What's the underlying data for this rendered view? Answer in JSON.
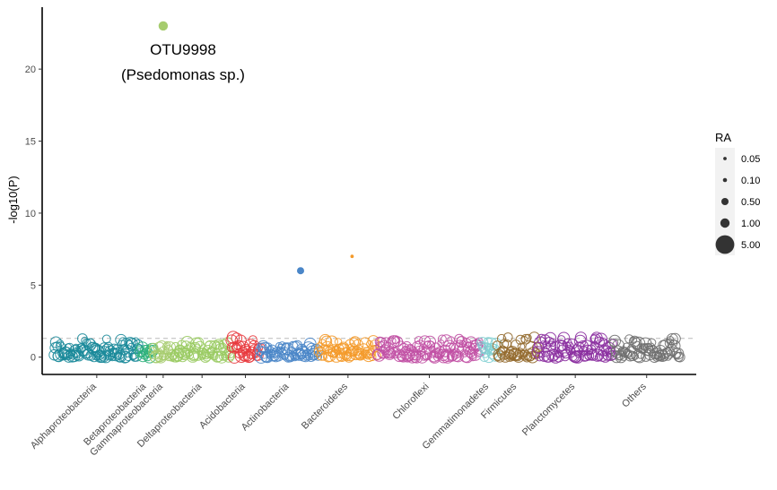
{
  "chart_data": {
    "type": "scatter",
    "ylabel": "-log10(P)",
    "xlabel": "",
    "ylim": [
      -1.2,
      24.3
    ],
    "y_ticks": [
      0,
      5,
      10,
      15,
      20
    ],
    "threshold": 1.3,
    "categories": [
      {
        "name": "Alphaproteobacteria",
        "color": "#1B8A9A",
        "range": [
          0,
          95
        ],
        "count": 95,
        "ymax": 1.3
      },
      {
        "name": "Betaproteobacteria",
        "color": "#2BB07A",
        "range": [
          95,
          110
        ],
        "count": 14,
        "ymax": 1.0
      },
      {
        "name": "Gammaproteobacteria",
        "color": "#A6CC6E",
        "range": [
          110,
          132
        ],
        "count": 22,
        "ymax": 1.0
      },
      {
        "name": "Deltaproteobacteria",
        "color": "#9ACB63",
        "range": [
          132,
          196
        ],
        "count": 64,
        "ymax": 1.1
      },
      {
        "name": "Acidobacteria",
        "color": "#E8383D",
        "range": [
          196,
          228
        ],
        "count": 32,
        "ymax": 1.4
      },
      {
        "name": "Actinobacteria",
        "color": "#4A86C8",
        "range": [
          228,
          293
        ],
        "count": 65,
        "ymax": 1.0
      },
      {
        "name": "Bacteroidetes",
        "color": "#F49A2A",
        "range": [
          293,
          358
        ],
        "count": 65,
        "ymax": 1.2
      },
      {
        "name": "Chloroflexi",
        "color": "#C150A4",
        "range": [
          358,
          473
        ],
        "count": 115,
        "ymax": 1.3
      },
      {
        "name": "Gemmatimonadetes",
        "color": "#7FCFD2",
        "range": [
          473,
          490
        ],
        "count": 17,
        "ymax": 1.1
      },
      {
        "name": "Firmicutes",
        "color": "#946A2E",
        "range": [
          490,
          535
        ],
        "count": 45,
        "ymax": 1.5
      },
      {
        "name": "Planctomycetes",
        "color": "#8B2FA0",
        "range": [
          535,
          619
        ],
        "count": 84,
        "ymax": 1.4
      },
      {
        "name": "Others",
        "color": "#707070",
        "range": [
          619,
          693
        ],
        "count": 74,
        "ymax": 1.3
      }
    ],
    "highlighted_points": [
      {
        "category": "Gammaproteobacteria",
        "x_index": 121,
        "y": 23.0,
        "ra": 1.0,
        "color": "#A6CC6E"
      },
      {
        "category": "Actinobacteria",
        "x_index": 273,
        "y": 6.0,
        "ra": 0.5,
        "color": "#4A86C8"
      },
      {
        "category": "Bacteroidetes",
        "x_index": 330,
        "y": 7.0,
        "ra": 0.05,
        "color": "#F49A2A"
      }
    ],
    "annotation": {
      "line1": "OTU9998",
      "line2": "(Psedomonas sp.)"
    },
    "legend": {
      "title": "RA",
      "position": "right",
      "entries": [
        {
          "label": "0.05",
          "value": 0.05
        },
        {
          "label": "0.10",
          "value": 0.1
        },
        {
          "label": "0.50",
          "value": 0.5
        },
        {
          "label": "1.00",
          "value": 1.0
        },
        {
          "label": "5.00",
          "value": 5.0
        }
      ]
    },
    "grid": false
  }
}
